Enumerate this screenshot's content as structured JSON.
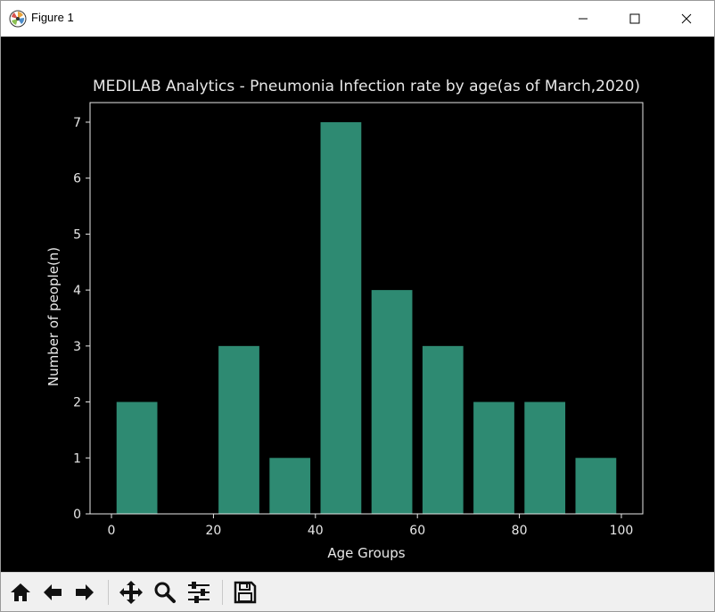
{
  "window": {
    "title": "Figure 1",
    "controls": [
      "minimize-icon",
      "maximize-icon",
      "close-icon"
    ]
  },
  "toolbar": {
    "tools": [
      "home-icon",
      "back-arrow-icon",
      "forward-arrow-icon",
      "pan-icon",
      "zoom-icon",
      "configure-subplots-icon",
      "save-icon"
    ]
  },
  "colors": {
    "figure_background": "#000000",
    "bar": "#2e8a72",
    "axes_foreground": "#e8e8e8"
  },
  "chart_data": {
    "type": "bar",
    "title": "MEDILAB Analytics - Pneumonia Infection rate by age(as of March,2020)",
    "xlabel": "Age Groups",
    "ylabel": "Number of people(n)",
    "bar_width": 8,
    "x": [
      5,
      15,
      25,
      35,
      45,
      55,
      65,
      75,
      85,
      95
    ],
    "values": [
      2,
      0,
      3,
      1,
      7,
      4,
      3,
      2,
      2,
      1
    ],
    "xlim": [
      -4.2,
      104.2
    ],
    "ylim": [
      0,
      7.35
    ],
    "xticks": [
      0,
      20,
      40,
      60,
      80,
      100
    ],
    "yticks": [
      0,
      1,
      2,
      3,
      4,
      5,
      6,
      7
    ],
    "grid": false,
    "legend": "none"
  }
}
